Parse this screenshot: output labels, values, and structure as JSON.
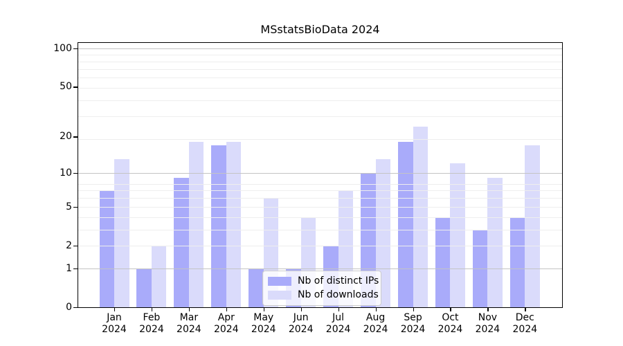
{
  "chart_data": {
    "type": "bar",
    "title": "MSstatsBioData 2024",
    "categories": [
      "Jan 2024",
      "Feb 2024",
      "Mar 2024",
      "Apr 2024",
      "May 2024",
      "Jun 2024",
      "Jul 2024",
      "Aug 2024",
      "Sep 2024",
      "Oct 2024",
      "Nov 2024",
      "Dec 2024"
    ],
    "series": [
      {
        "name": "Nb of distinct IPs",
        "color": "#a9abfa",
        "values": [
          7,
          1,
          9,
          17,
          1,
          1,
          2,
          10,
          18,
          4,
          3,
          4
        ]
      },
      {
        "name": "Nb of downloads",
        "color": "#dadbfb",
        "values": [
          13,
          2,
          18,
          18,
          6,
          4,
          7,
          13,
          24,
          12,
          9,
          17
        ]
      }
    ],
    "xlabel": "",
    "ylabel": "",
    "yscale": "log10(value+1)",
    "ylim": [
      0,
      111
    ],
    "y_ticks": [
      100,
      50,
      20,
      10,
      5,
      2,
      1,
      0
    ],
    "grid": {
      "on": true,
      "major_values": [
        1,
        10,
        100
      ],
      "minor_values": [
        2,
        3,
        4,
        5,
        6,
        7,
        8,
        19,
        29,
        39,
        49,
        59,
        69,
        79,
        89
      ]
    },
    "legend": {
      "position": "inside-bottom-center"
    }
  }
}
